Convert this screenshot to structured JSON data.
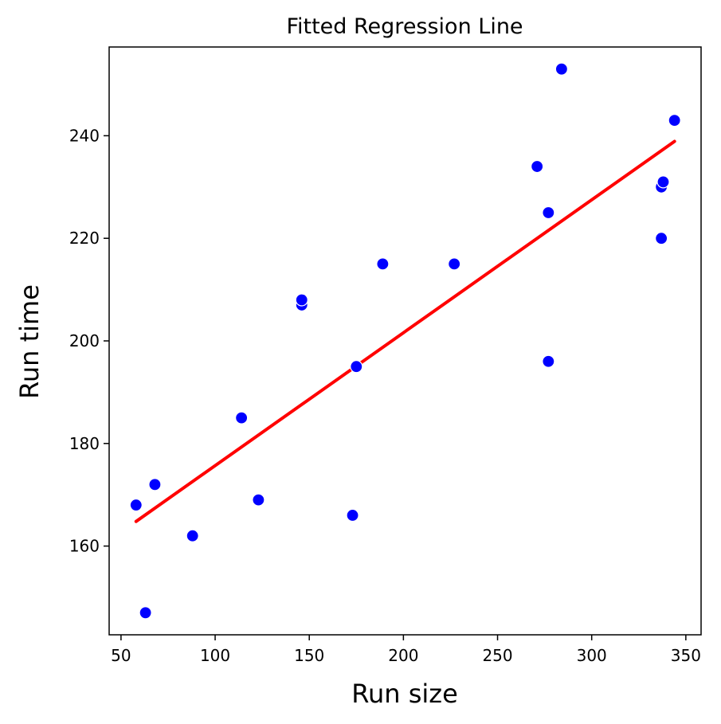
{
  "chart_data": {
    "type": "scatter",
    "title": "Fitted Regression Line",
    "xlabel": "Run size",
    "ylabel": "Run time",
    "xlim": [
      43.7,
      358.1
    ],
    "ylim": [
      142.7,
      257.3
    ],
    "xticks": [
      50,
      100,
      150,
      200,
      250,
      300,
      350
    ],
    "yticks": [
      160,
      180,
      200,
      220,
      240
    ],
    "grid": false,
    "points": [
      {
        "x": 58,
        "y": 168
      },
      {
        "x": 63,
        "y": 147
      },
      {
        "x": 68,
        "y": 172
      },
      {
        "x": 88,
        "y": 162
      },
      {
        "x": 114,
        "y": 185
      },
      {
        "x": 123,
        "y": 169
      },
      {
        "x": 146,
        "y": 207
      },
      {
        "x": 146,
        "y": 208
      },
      {
        "x": 173,
        "y": 166
      },
      {
        "x": 175,
        "y": 195
      },
      {
        "x": 189,
        "y": 215
      },
      {
        "x": 227,
        "y": 215
      },
      {
        "x": 271,
        "y": 234
      },
      {
        "x": 277,
        "y": 225
      },
      {
        "x": 277,
        "y": 196
      },
      {
        "x": 284,
        "y": 253
      },
      {
        "x": 337,
        "y": 220
      },
      {
        "x": 337,
        "y": 230
      },
      {
        "x": 338,
        "y": 231
      },
      {
        "x": 344,
        "y": 243
      }
    ],
    "fit_line": {
      "x": [
        58,
        344
      ],
      "y": [
        164.8,
        238.9
      ]
    },
    "colors": {
      "points": "#0000ff",
      "fit_line": "#ff0000",
      "point_edge": "#ffffff"
    }
  }
}
